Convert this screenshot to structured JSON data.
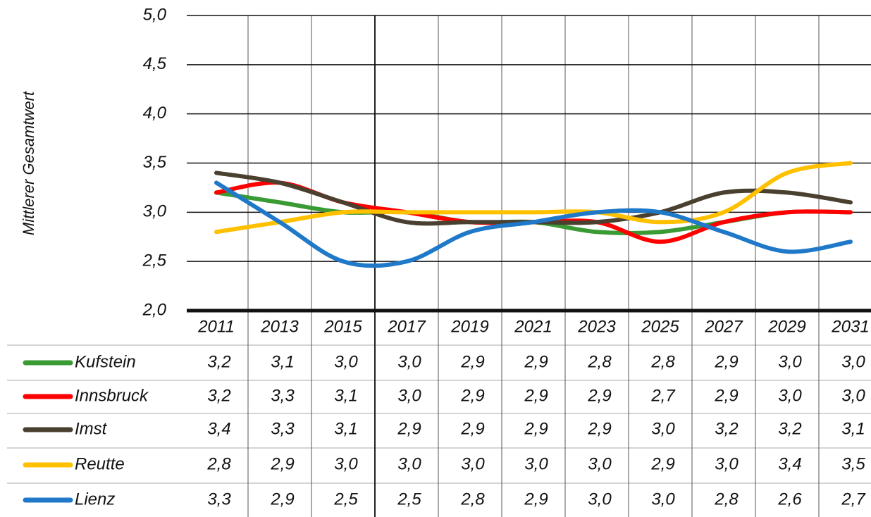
{
  "chart_data": {
    "type": "line",
    "y_label": "Mittlerer Gesamtwert",
    "categories": [
      "2011",
      "2013",
      "2015",
      "2017",
      "2019",
      "2021",
      "2023",
      "2025",
      "2027",
      "2029",
      "2031"
    ],
    "series": [
      {
        "name": "Kufstein",
        "color": "#3a9a34",
        "values": [
          3.2,
          3.1,
          3.0,
          3.0,
          2.9,
          2.9,
          2.8,
          2.8,
          2.9,
          3.0,
          3.0
        ],
        "value_labels": [
          "3,2",
          "3,1",
          "3,0",
          "3,0",
          "2,9",
          "2,9",
          "2,8",
          "2,8",
          "2,9",
          "3,0",
          "3,0"
        ]
      },
      {
        "name": "Innsbruck",
        "color": "#ff0000",
        "values": [
          3.2,
          3.3,
          3.1,
          3.0,
          2.9,
          2.9,
          2.9,
          2.7,
          2.9,
          3.0,
          3.0
        ],
        "value_labels": [
          "3,2",
          "3,3",
          "3,1",
          "3,0",
          "2,9",
          "2,9",
          "2,9",
          "2,7",
          "2,9",
          "3,0",
          "3,0"
        ]
      },
      {
        "name": "Imst",
        "color": "#4a4030",
        "values": [
          3.4,
          3.3,
          3.1,
          2.9,
          2.9,
          2.9,
          2.9,
          3.0,
          3.2,
          3.2,
          3.1
        ],
        "value_labels": [
          "3,4",
          "3,3",
          "3,1",
          "2,9",
          "2,9",
          "2,9",
          "2,9",
          "3,0",
          "3,2",
          "3,2",
          "3,1"
        ]
      },
      {
        "name": "Reutte",
        "color": "#ffc000",
        "values": [
          2.8,
          2.9,
          3.0,
          3.0,
          3.0,
          3.0,
          3.0,
          2.9,
          3.0,
          3.4,
          3.5
        ],
        "value_labels": [
          "2,8",
          "2,9",
          "3,0",
          "3,0",
          "3,0",
          "3,0",
          "3,0",
          "2,9",
          "3,0",
          "3,4",
          "3,5"
        ]
      },
      {
        "name": "Lienz",
        "color": "#1f78c8",
        "values": [
          3.3,
          2.9,
          2.5,
          2.5,
          2.8,
          2.9,
          3.0,
          3.0,
          2.8,
          2.6,
          2.7
        ],
        "value_labels": [
          "3,3",
          "2,9",
          "2,5",
          "2,5",
          "2,8",
          "2,9",
          "3,0",
          "3,0",
          "2,8",
          "2,6",
          "2,7"
        ]
      }
    ],
    "ylim": [
      2.0,
      5.0
    ],
    "yticks": [
      {
        "value": 2.0,
        "label": "2,0"
      },
      {
        "value": 2.5,
        "label": "2,5"
      },
      {
        "value": 3.0,
        "label": "3,0"
      },
      {
        "value": 3.5,
        "label": "3,5"
      },
      {
        "value": 4.0,
        "label": "4,0"
      },
      {
        "value": 4.5,
        "label": "4,5"
      },
      {
        "value": 5.0,
        "label": "5,0"
      }
    ],
    "grid": true
  }
}
